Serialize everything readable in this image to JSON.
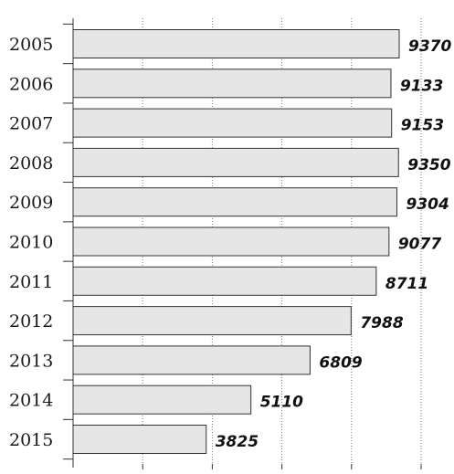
{
  "chart_data": {
    "type": "bar",
    "orientation": "horizontal",
    "categories": [
      "2005",
      "2006",
      "2007",
      "2008",
      "2009",
      "2010",
      "2011",
      "2012",
      "2013",
      "2014",
      "2015"
    ],
    "values": [
      9370,
      9133,
      9153,
      9350,
      9304,
      9077,
      8711,
      7988,
      6809,
      5110,
      3825
    ],
    "title": "",
    "xlabel": "",
    "ylabel": "",
    "xlim": [
      0,
      10000
    ],
    "grid": "vertical-dotted",
    "legend": "none",
    "colors": {
      "bar_fill": "#e6e6e6",
      "bar_stroke": "#333333",
      "grid": "#7a7a7a",
      "text": "#111111"
    }
  }
}
